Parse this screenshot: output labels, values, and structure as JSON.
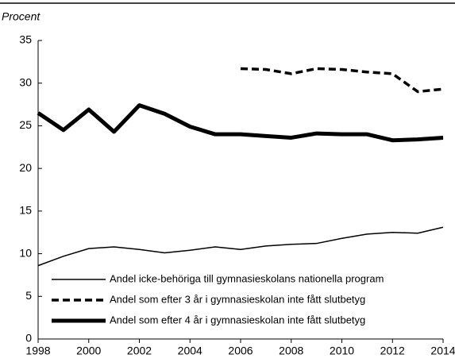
{
  "chart_data": {
    "type": "line",
    "axis_title": "Procent",
    "x": [
      1998,
      1999,
      2000,
      2001,
      2002,
      2003,
      2004,
      2005,
      2006,
      2007,
      2008,
      2009,
      2010,
      2011,
      2012,
      2013,
      2014
    ],
    "series": [
      {
        "name": "Andel icke-behöriga till gymnasieskolans nationella program",
        "color": "#000000",
        "line_width": 1.5,
        "dashed": false,
        "values": [
          8.6,
          9.7,
          10.6,
          10.8,
          10.5,
          10.1,
          10.4,
          10.8,
          10.5,
          10.9,
          11.1,
          11.2,
          11.8,
          12.3,
          12.5,
          12.4,
          13.1
        ]
      },
      {
        "name": "Andel som efter 3 år i gymnasieskolan inte fått slutbetyg",
        "color": "#000000",
        "line_width": 3.5,
        "dashed": true,
        "values": [
          null,
          null,
          null,
          null,
          null,
          null,
          null,
          null,
          31.7,
          31.6,
          31.1,
          31.7,
          31.6,
          31.3,
          31.1,
          29.0,
          29.3
        ]
      },
      {
        "name": "Andel som efter 4 år i gymnasieskolan inte fått slutbetyg",
        "color": "#000000",
        "line_width": 5,
        "dashed": false,
        "values": [
          26.5,
          24.5,
          26.9,
          24.3,
          27.4,
          26.4,
          24.9,
          24.0,
          24.0,
          23.8,
          23.6,
          24.1,
          24.0,
          24.0,
          23.3,
          23.4,
          23.6
        ]
      }
    ],
    "xlim": [
      1998,
      2014
    ],
    "xticks": [
      1998,
      2000,
      2002,
      2004,
      2006,
      2008,
      2010,
      2012,
      2014
    ],
    "ylim": [
      0,
      35
    ],
    "yticks": [
      0,
      5,
      10,
      15,
      20,
      25,
      30,
      35
    ],
    "grid": false,
    "legend": "lower left"
  }
}
